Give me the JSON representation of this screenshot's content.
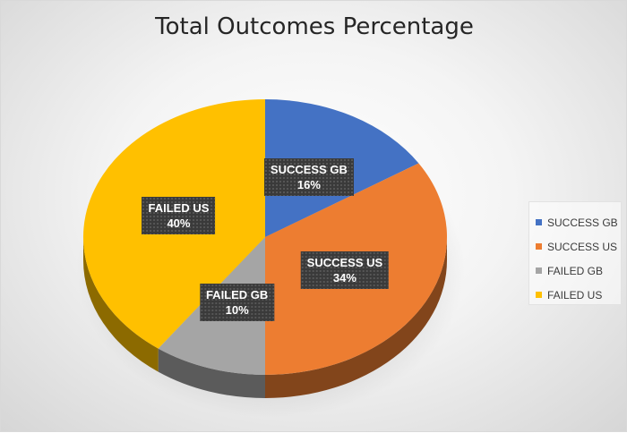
{
  "chart_data": {
    "type": "pie",
    "title": "Total Outcomes Percentage",
    "categories": [
      "SUCCESS GB",
      "SUCCESS US",
      "FAILED GB",
      "FAILED US"
    ],
    "values": [
      16,
      34,
      10,
      40
    ],
    "value_labels": [
      "16%",
      "34%",
      "10%",
      "40%"
    ],
    "colors": [
      "#4472C4",
      "#ED7D31",
      "#A5A5A5",
      "#FFC000"
    ],
    "legend_position": "right",
    "style": "3d"
  }
}
